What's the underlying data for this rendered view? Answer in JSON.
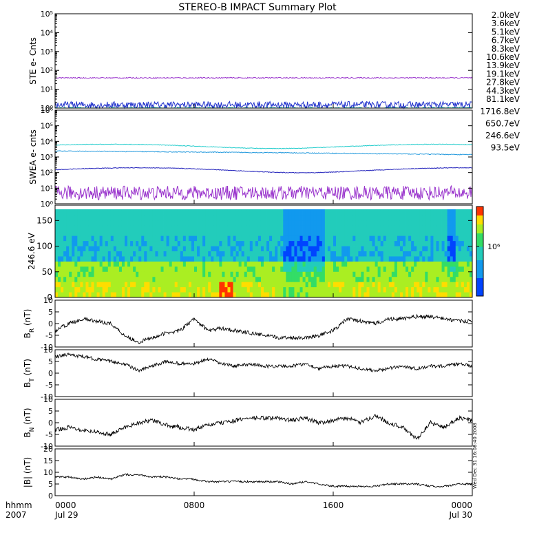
{
  "title": "STEREO-B IMPACT Summary Plot",
  "time_axis": {
    "row1_label": "hhmm",
    "row2_label": "2007",
    "ticks": [
      {
        "hhmm": "0000",
        "date": "Jul 29",
        "hour": 0
      },
      {
        "hhmm": "0800",
        "date": "",
        "hour": 8
      },
      {
        "hhmm": "1600",
        "date": "",
        "hour": 16
      },
      {
        "hhmm": "0000",
        "date": "Jul 30",
        "hour": 24
      }
    ]
  },
  "side_stamp": "Wed Dec 31 16:08:40 2008",
  "legend_ste": [
    {
      "label": "2.0keV",
      "color": "#9933cc"
    },
    {
      "label": "3.6keV",
      "color": "#5522aa"
    },
    {
      "label": "5.1keV",
      "color": "#2233cc"
    },
    {
      "label": "6.7keV",
      "color": "#1199dd"
    },
    {
      "label": "8.3keV",
      "color": "#22cccc"
    },
    {
      "label": "10.6keV",
      "color": "#22bb88"
    },
    {
      "label": "13.9keV",
      "color": "#44cc00"
    },
    {
      "label": "19.1keV",
      "color": "#bbcc00"
    },
    {
      "label": "27.8keV",
      "color": "#ffaa00"
    },
    {
      "label": "44.3keV",
      "color": "#ff6600"
    },
    {
      "label": "81.1keV",
      "color": "#dd2200"
    }
  ],
  "legend_swea": [
    {
      "label": "1716.8eV",
      "color": "#9933cc"
    },
    {
      "label": "650.7eV",
      "color": "#2222bb"
    },
    {
      "label": "246.6eV",
      "color": "#2299dd"
    },
    {
      "label": "93.5eV",
      "color": "#22cccc"
    }
  ],
  "chart_data": [
    {
      "type": "line",
      "id": "ste",
      "ylabel": "STE e- Cnts",
      "yscale": "log",
      "ytick_labels": [
        "10⁰",
        "10¹",
        "10²",
        "10³",
        "10⁴",
        "10⁵"
      ],
      "series": [
        {
          "name": "2.0keV",
          "approx_level": 40,
          "color": "#9933cc"
        },
        {
          "name": "5.1keV",
          "approx_level": 1.5,
          "color": "#2233cc"
        },
        {
          "name": "8.3keV",
          "approx_level": 1.0,
          "color": "#22cccc"
        }
      ]
    },
    {
      "type": "line",
      "id": "swea",
      "ylabel": "SWEA e- cnts",
      "yscale": "log",
      "ytick_labels": [
        "10⁰",
        "10¹",
        "10²",
        "10³",
        "10⁴",
        "10⁵",
        "10⁶"
      ],
      "series": [
        {
          "name": "93.5eV",
          "approx_level": 5000,
          "color": "#22cccc"
        },
        {
          "name": "246.6eV",
          "approx_level": 2000,
          "color": "#2299dd"
        },
        {
          "name": "650.7eV",
          "approx_level": 150,
          "color": "#2222bb"
        },
        {
          "name": "1716.8eV",
          "approx_level": 5,
          "color": "#9933cc"
        }
      ]
    },
    {
      "type": "heatmap",
      "id": "pad",
      "ylabel": "246.6 eV",
      "ylim": [
        0,
        180
      ],
      "ytick_labels": [
        "0",
        "50",
        "100",
        "150"
      ],
      "colorbar_label": "10⁶"
    },
    {
      "type": "line",
      "id": "br",
      "ylabel": "B_R (nT)",
      "ylim": [
        -10,
        10
      ],
      "ytick_labels": [
        "-10",
        "-5",
        "0",
        "5",
        "10"
      ],
      "x_hours": [
        0,
        0.8,
        1.6,
        2.4,
        3.2,
        4.0,
        4.8,
        5.6,
        6.4,
        7.2,
        8.0,
        8.8,
        9.6,
        10.4,
        11.2,
        12.0,
        12.8,
        13.6,
        14.4,
        15.2,
        16.0,
        16.8,
        17.6,
        18.4,
        19.2,
        20.0,
        20.8,
        21.6,
        22.4,
        23.2,
        24.0
      ],
      "values": [
        -3,
        0,
        2,
        1,
        0,
        -5,
        -8,
        -6,
        -4,
        -3,
        2,
        -3,
        -2,
        -3,
        -4,
        -5,
        -6,
        -6,
        -6,
        -5,
        -3,
        2,
        1,
        0,
        2,
        2,
        3,
        3,
        2,
        1,
        1
      ]
    },
    {
      "type": "line",
      "id": "bt",
      "ylabel": "B_T (nT)",
      "ylim": [
        -10,
        10
      ],
      "ytick_labels": [
        "-10",
        "-5",
        "0",
        "5",
        "10"
      ],
      "x_hours": [
        0,
        0.8,
        1.6,
        2.4,
        3.2,
        4.0,
        4.8,
        5.6,
        6.4,
        7.2,
        8.0,
        8.8,
        9.6,
        10.4,
        11.2,
        12.0,
        12.8,
        13.6,
        14.4,
        15.2,
        16.0,
        16.8,
        17.6,
        18.4,
        19.2,
        20.0,
        20.8,
        21.6,
        22.4,
        23.2,
        24.0
      ],
      "values": [
        7,
        8,
        7,
        6,
        5,
        4,
        1,
        3,
        5,
        4,
        4,
        6,
        4,
        3,
        4,
        3,
        3,
        3,
        4,
        2,
        3,
        3,
        2,
        1,
        2,
        3,
        2,
        3,
        3,
        4,
        3
      ]
    },
    {
      "type": "line",
      "id": "bn",
      "ylabel": "B_N (nT)",
      "ylim": [
        -10,
        10
      ],
      "ytick_labels": [
        "-10",
        "-5",
        "0",
        "5",
        "10"
      ],
      "x_hours": [
        0,
        0.8,
        1.6,
        2.4,
        3.2,
        4.0,
        4.8,
        5.6,
        6.4,
        7.2,
        8.0,
        8.8,
        9.6,
        10.4,
        11.2,
        12.0,
        12.8,
        13.6,
        14.4,
        15.2,
        16.0,
        16.8,
        17.6,
        18.4,
        19.2,
        20.0,
        20.8,
        21.6,
        22.4,
        23.2,
        24.0
      ],
      "values": [
        -3,
        -2,
        -3,
        -4,
        -5,
        -2,
        0,
        1,
        -1,
        -2,
        -3,
        -1,
        0,
        1,
        2,
        2,
        2,
        1,
        2,
        0,
        1,
        2,
        0,
        3,
        0,
        -2,
        -7,
        0,
        -2,
        2,
        1
      ]
    },
    {
      "type": "line",
      "id": "bmag",
      "ylabel": "|B| (nT)",
      "ylim": [
        0,
        20
      ],
      "ytick_labels": [
        "0",
        "5",
        "10",
        "15",
        "20"
      ],
      "x_hours": [
        0,
        0.8,
        1.6,
        2.4,
        3.2,
        4.0,
        4.8,
        5.6,
        6.4,
        7.2,
        8.0,
        8.8,
        9.6,
        10.4,
        11.2,
        12.0,
        12.8,
        13.6,
        14.4,
        15.2,
        16.0,
        16.8,
        17.6,
        18.4,
        19.2,
        20.0,
        20.8,
        21.6,
        22.4,
        23.2,
        24.0
      ],
      "values": [
        8,
        8,
        7,
        8,
        7,
        9,
        9,
        8,
        8,
        7,
        7,
        6,
        6,
        6,
        6,
        6,
        6,
        5,
        6,
        5,
        4,
        4,
        4,
        4,
        5,
        5,
        5,
        4,
        4,
        5,
        5
      ]
    }
  ]
}
